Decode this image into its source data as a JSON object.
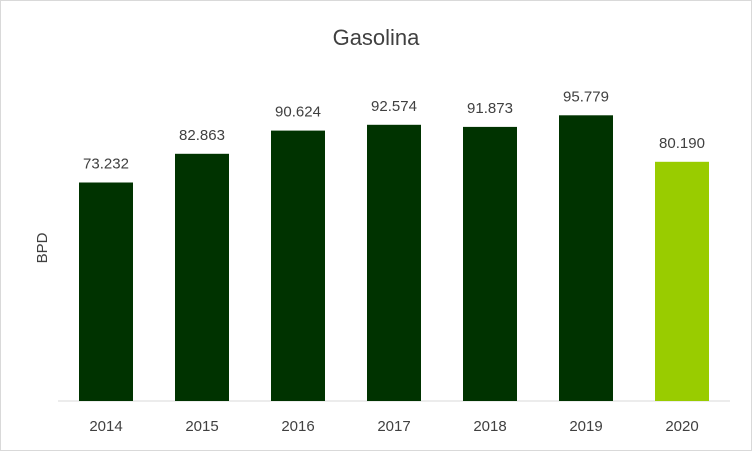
{
  "chart_data": {
    "type": "bar",
    "title": "Gasolina",
    "xlabel": "",
    "ylabel": "BPD",
    "categories": [
      "2014",
      "2015",
      "2016",
      "2017",
      "2018",
      "2019",
      "2020"
    ],
    "values": [
      73232,
      82863,
      90624,
      92574,
      91873,
      95779,
      80190
    ],
    "value_labels": [
      "73.232",
      "82.863",
      "90.624",
      "92.574",
      "91.873",
      "95.779",
      "80.190"
    ],
    "ylim": [
      0,
      120000
    ],
    "grid": false,
    "legend": "none",
    "colors": {
      "default_bar": "#003300",
      "highlight_bar": "#99cc00",
      "highlight_category": "2020",
      "axis": "#d9d9d9"
    }
  }
}
